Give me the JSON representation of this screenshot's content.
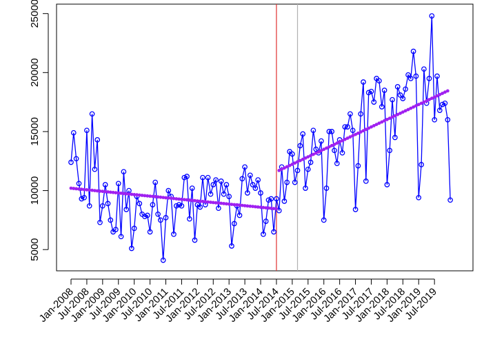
{
  "chart_data": {
    "type": "line",
    "title": "",
    "xlabel": "",
    "ylabel": "",
    "ylim": [
      3200,
      25800
    ],
    "yticks": [
      5000,
      10000,
      15000,
      20000,
      25000
    ],
    "ytick_labels": [
      "5000",
      "10000",
      "15000",
      "20000",
      "25000"
    ],
    "x_start": "2008-01",
    "x_end": "2019-12",
    "xtick_labels": [
      "Jan-2008",
      "Jul-2008",
      "Jan-2009",
      "Jul-2009",
      "Jan-2010",
      "Jul-2010",
      "Jan-2011",
      "Jul-2011",
      "Jan-2012",
      "Jul-2012",
      "Jan-2013",
      "Jul-2013",
      "Jan-2014",
      "Jul-2014",
      "Jan-2015",
      "Jul-2015",
      "Jan-2016",
      "Jul-2016",
      "Jan-2017",
      "Jul-2017",
      "Jan-2018",
      "Jul-2018",
      "Jan-2019",
      "Jul-2019"
    ],
    "grid": false,
    "series": [
      {
        "color": "#0000ff",
        "marker": "open-circle",
        "values": [
          12400,
          14900,
          12700,
          10600,
          9300,
          9400,
          15100,
          8700,
          16500,
          11800,
          14300,
          7300,
          8700,
          10500,
          8900,
          7500,
          6500,
          6700,
          10600,
          6100,
          11600,
          8400,
          10000,
          5100,
          6800,
          9500,
          8900,
          8000,
          7800,
          7900,
          6500,
          8800,
          10700,
          8000,
          7500,
          4100,
          7700,
          10000,
          9500,
          6300,
          8700,
          8800,
          8700,
          11100,
          11200,
          7600,
          10200,
          5800,
          8800,
          8600,
          11100,
          8800,
          11100,
          9700,
          10500,
          10900,
          8500,
          10800,
          9700,
          10500,
          9500,
          5300,
          7200,
          8700,
          7900,
          11000,
          12000,
          9800,
          11300,
          10500,
          10200,
          10900,
          9800,
          6300,
          7400,
          9200,
          9300,
          6500,
          9300,
          8300,
          12000,
          9100,
          10700,
          13300,
          13100,
          10700,
          11700,
          13800,
          14800,
          10200,
          11800,
          12400,
          15100,
          13500,
          13200,
          14200,
          7500,
          10200,
          15000,
          15000,
          13400,
          12300,
          14300,
          13200,
          15400,
          15400,
          16500,
          15100,
          8400,
          12100,
          16500,
          19200,
          10800,
          18300,
          18400,
          17500,
          19500,
          19300,
          17100,
          18500,
          10500,
          13400,
          17700,
          14500,
          18800,
          18100,
          17800,
          18600,
          19800,
          19500,
          21800,
          19700,
          9400,
          12200,
          20300,
          17400,
          19500,
          24800,
          16000,
          19700,
          16800,
          17300,
          17400,
          16000,
          9200
        ]
      },
      {
        "color": "#a020f0",
        "marker": "dot",
        "segments": [
          {
            "from": "2008-01",
            "to": "2014-07",
            "y_from": 10200,
            "y_to": 8450
          },
          {
            "from": "2014-08",
            "to": "2019-12",
            "y_from": 11700,
            "y_to": 18450
          }
        ]
      }
    ],
    "vlines": [
      {
        "x": "2014-07",
        "color": "#e03030"
      },
      {
        "x": "2015-03",
        "color": "#b0b0b0"
      }
    ]
  }
}
